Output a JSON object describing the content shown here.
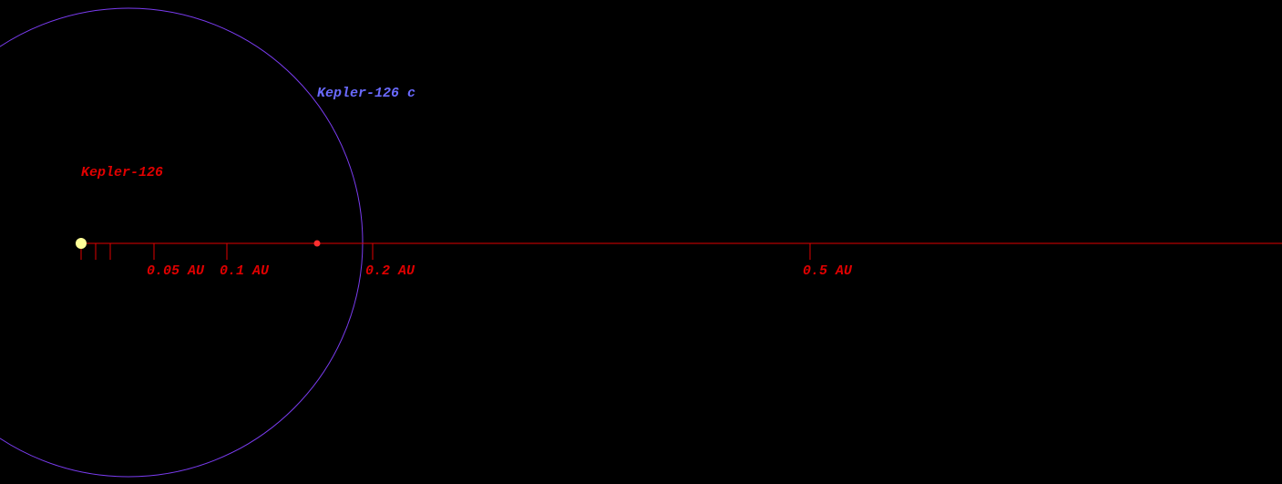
{
  "planet": {
    "label": "Kepler-126 c"
  },
  "star": {
    "label": "Kepler-126"
  },
  "scale": {
    "tick_labels": [
      "0.05 AU",
      "0.1 AU",
      "0.2 AU",
      "0.5 AU"
    ]
  }
}
